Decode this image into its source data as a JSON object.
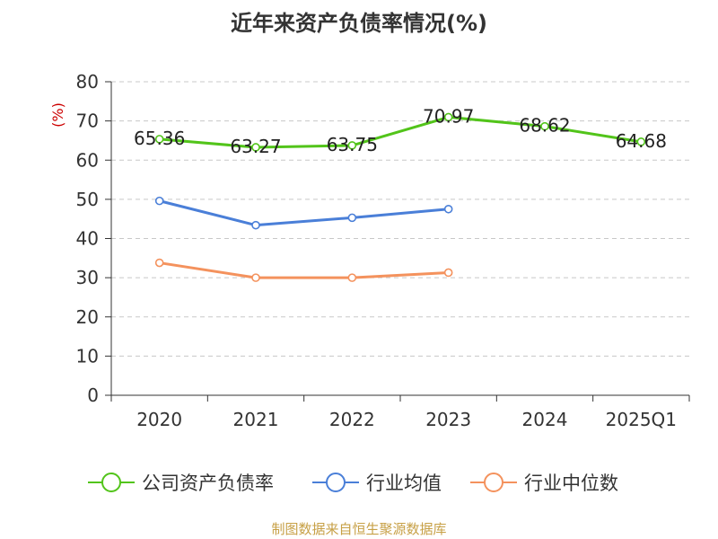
{
  "chart_data": {
    "type": "line",
    "title": "近年来资产负债率情况(%)",
    "ylabel": "(%)",
    "categories": [
      "2020",
      "2021",
      "2022",
      "2023",
      "2024",
      "2025Q1"
    ],
    "ylim": [
      0,
      80
    ],
    "yticks": [
      0,
      10,
      20,
      30,
      40,
      50,
      60,
      70,
      80
    ],
    "grid": true,
    "legend_position": "bottom",
    "series": [
      {
        "name": "公司资产负债率",
        "color": "#52c41a",
        "values": [
          65.36,
          63.27,
          63.75,
          70.97,
          68.62,
          64.68
        ],
        "labels": [
          "65.36",
          "63.27",
          "63.75",
          "70.97",
          "68.62",
          "64.68"
        ]
      },
      {
        "name": "行业均值",
        "color": "#4a7fd8",
        "values": [
          49.6,
          43.4,
          45.3,
          47.5,
          null,
          null
        ]
      },
      {
        "name": "行业中位数",
        "color": "#f4925d",
        "values": [
          33.8,
          30.0,
          30.0,
          31.3,
          null,
          null
        ]
      }
    ]
  },
  "source": "制图数据来自恒生聚源数据库"
}
